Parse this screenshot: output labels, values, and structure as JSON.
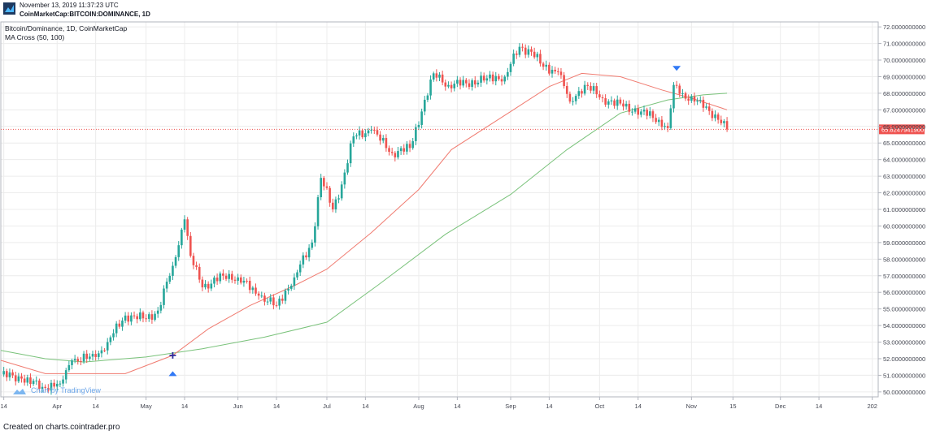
{
  "header": {
    "timestamp": "November 13, 2019 11:37:23 UTC",
    "symbol_line": "CoinMarketCap:BITCOIN:DOMINANCE, 1D"
  },
  "legend": {
    "title": "Bitcoin/Dominance, 1D, CoinMarketCap",
    "indicator": "MA Cross (50, 100)"
  },
  "watermark": "Chart by TradingView",
  "footer": "Created on charts.cointrader.pro",
  "colors": {
    "up": "#26a69a",
    "down": "#ef5350",
    "ma_fast": "#f07b70",
    "ma_slow": "#79c27a",
    "price_line": "#ef5350",
    "signal": "#3179f5",
    "grid": "#ececec",
    "axis_text": "#434651",
    "cross": "#2b2b9b"
  },
  "chart_data": {
    "type": "candlestick",
    "title": "Bitcoin/Dominance, 1D, CoinMarketCap",
    "ylim": [
      49.7,
      72.3
    ],
    "xlim": [
      "2019-03-13",
      "2020-01-03"
    ],
    "y_ticks": [
      "72.0000000000",
      "71.0000000000",
      "70.0000000000",
      "69.0000000000",
      "68.0000000000",
      "67.0000000000",
      "66.0000000000",
      "65.0000000000",
      "64.0000000000",
      "63.0000000000",
      "62.0000000000",
      "61.0000000000",
      "60.0000000000",
      "59.0000000000",
      "58.0000000000",
      "57.0000000000",
      "56.0000000000",
      "55.0000000000",
      "54.0000000000",
      "53.0000000000",
      "52.0000000000",
      "51.0000000000",
      "50.0000000000"
    ],
    "x_ticks": [
      {
        "label": "14",
        "date": "2019-03-14"
      },
      {
        "label": "Apr",
        "date": "2019-04-01"
      },
      {
        "label": "14",
        "date": "2019-04-14"
      },
      {
        "label": "May",
        "date": "2019-05-01"
      },
      {
        "label": "14",
        "date": "2019-05-14"
      },
      {
        "label": "Jun",
        "date": "2019-06-01"
      },
      {
        "label": "14",
        "date": "2019-06-14"
      },
      {
        "label": "Jul",
        "date": "2019-07-01"
      },
      {
        "label": "14",
        "date": "2019-07-14"
      },
      {
        "label": "Aug",
        "date": "2019-08-01"
      },
      {
        "label": "14",
        "date": "2019-08-14"
      },
      {
        "label": "Sep",
        "date": "2019-09-01"
      },
      {
        "label": "14",
        "date": "2019-09-14"
      },
      {
        "label": "Oct",
        "date": "2019-10-01"
      },
      {
        "label": "14",
        "date": "2019-10-14"
      },
      {
        "label": "Nov",
        "date": "2019-11-01"
      },
      {
        "label": "15",
        "date": "2019-11-15"
      },
      {
        "label": "Dec",
        "date": "2019-12-01"
      },
      {
        "label": "14",
        "date": "2019-12-14"
      },
      {
        "label": "202",
        "date": "2020-01-01"
      }
    ],
    "last_price": 65.82479419,
    "last_price_label": "65.8247941900",
    "close_waypoints": [
      [
        "2019-03-13",
        51.05
      ],
      [
        "2019-03-20",
        50.8
      ],
      [
        "2019-03-27",
        50.3
      ],
      [
        "2019-04-02",
        50.5
      ],
      [
        "2019-04-06",
        51.9
      ],
      [
        "2019-04-14",
        52.1
      ],
      [
        "2019-04-18",
        53.0
      ],
      [
        "2019-04-24",
        54.6
      ],
      [
        "2019-05-01",
        54.4
      ],
      [
        "2019-05-05",
        54.9
      ],
      [
        "2019-05-10",
        57.6
      ],
      [
        "2019-05-14",
        60.4
      ],
      [
        "2019-05-16",
        58.2
      ],
      [
        "2019-05-20",
        56.3
      ],
      [
        "2019-05-27",
        57.0
      ],
      [
        "2019-06-01",
        56.9
      ],
      [
        "2019-06-08",
        55.8
      ],
      [
        "2019-06-14",
        55.2
      ],
      [
        "2019-06-20",
        56.9
      ],
      [
        "2019-06-26",
        59.0
      ],
      [
        "2019-06-29",
        62.9
      ],
      [
        "2019-07-03",
        61.0
      ],
      [
        "2019-07-06",
        62.5
      ],
      [
        "2019-07-10",
        65.4
      ],
      [
        "2019-07-16",
        65.8
      ],
      [
        "2019-07-23",
        64.4
      ],
      [
        "2019-07-29",
        64.7
      ],
      [
        "2019-08-02",
        66.9
      ],
      [
        "2019-08-06",
        69.2
      ],
      [
        "2019-08-11",
        68.5
      ],
      [
        "2019-08-17",
        68.6
      ],
      [
        "2019-08-24",
        68.9
      ],
      [
        "2019-08-30",
        69.0
      ],
      [
        "2019-09-04",
        70.8
      ],
      [
        "2019-09-08",
        70.5
      ],
      [
        "2019-09-12",
        69.6
      ],
      [
        "2019-09-17",
        69.3
      ],
      [
        "2019-09-21",
        67.5
      ],
      [
        "2019-09-26",
        68.5
      ],
      [
        "2019-10-02",
        67.7
      ],
      [
        "2019-10-09",
        67.2
      ],
      [
        "2019-10-15",
        66.9
      ],
      [
        "2019-10-21",
        66.4
      ],
      [
        "2019-10-24",
        65.9
      ],
      [
        "2019-10-26",
        68.5
      ],
      [
        "2019-10-29",
        68.0
      ],
      [
        "2019-11-02",
        67.5
      ],
      [
        "2019-11-06",
        67.2
      ],
      [
        "2019-11-10",
        66.4
      ],
      [
        "2019-11-13",
        65.82
      ]
    ],
    "ma_fast_points": [
      [
        "2019-03-13",
        51.9
      ],
      [
        "2019-03-28",
        51.1
      ],
      [
        "2019-04-10",
        51.1
      ],
      [
        "2019-04-24",
        51.1
      ],
      [
        "2019-05-10",
        52.2
      ],
      [
        "2019-05-22",
        53.8
      ],
      [
        "2019-06-05",
        55.2
      ],
      [
        "2019-06-20",
        56.4
      ],
      [
        "2019-07-01",
        57.4
      ],
      [
        "2019-07-16",
        59.6
      ],
      [
        "2019-08-01",
        62.2
      ],
      [
        "2019-08-12",
        64.6
      ],
      [
        "2019-09-01",
        66.9
      ],
      [
        "2019-09-14",
        68.4
      ],
      [
        "2019-09-25",
        69.2
      ],
      [
        "2019-10-08",
        69.0
      ],
      [
        "2019-10-22",
        68.2
      ],
      [
        "2019-11-01",
        67.7
      ],
      [
        "2019-11-13",
        67.0
      ]
    ],
    "ma_slow_points": [
      [
        "2019-03-13",
        52.5
      ],
      [
        "2019-03-28",
        52.0
      ],
      [
        "2019-04-10",
        51.8
      ],
      [
        "2019-05-01",
        52.1
      ],
      [
        "2019-05-20",
        52.6
      ],
      [
        "2019-06-10",
        53.3
      ],
      [
        "2019-07-01",
        54.2
      ],
      [
        "2019-07-18",
        56.4
      ],
      [
        "2019-08-10",
        59.5
      ],
      [
        "2019-09-01",
        61.9
      ],
      [
        "2019-09-20",
        64.6
      ],
      [
        "2019-10-08",
        66.8
      ],
      [
        "2019-10-24",
        67.6
      ],
      [
        "2019-11-05",
        67.9
      ],
      [
        "2019-11-13",
        68.0
      ]
    ],
    "signals": [
      {
        "date": "2019-05-10",
        "kind": "cross",
        "value": 52.2
      },
      {
        "date": "2019-05-10",
        "kind": "buy",
        "value": 51.1
      },
      {
        "date": "2019-10-27",
        "kind": "sell",
        "value": 69.5
      }
    ]
  }
}
